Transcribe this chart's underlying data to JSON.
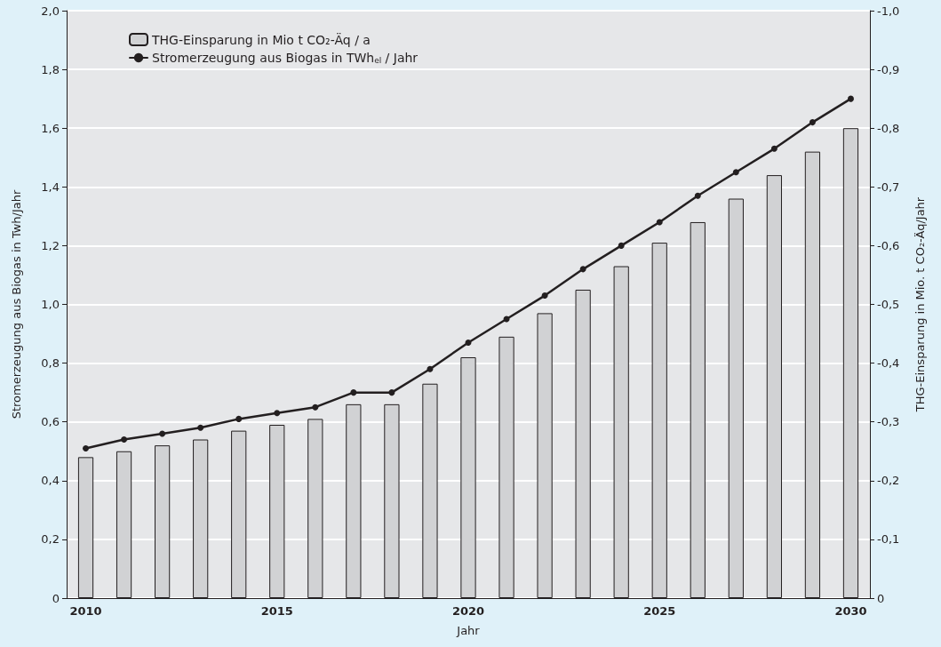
{
  "chart_data": {
    "type": "bar",
    "xlabel": "Jahr",
    "ylabel": "Stromerzeugung aus Biogas in Twh/Jahr",
    "y2label": "THG-Einsparung in Mio. t CO₂-Äq/Jahr",
    "categories": [
      "2010",
      null,
      null,
      null,
      null,
      "2015",
      null,
      null,
      null,
      null,
      "2020",
      null,
      null,
      null,
      null,
      "2025",
      null,
      null,
      null,
      null,
      "2030"
    ],
    "series": [
      {
        "name": "THG-Einsparung in Mio t CO₂-Äq / a",
        "axis": "y2",
        "color": "#d1d2d4",
        "values": [
          -0.24,
          -0.25,
          -0.26,
          -0.27,
          -0.285,
          -0.295,
          -0.305,
          -0.33,
          -0.33,
          -0.365,
          -0.41,
          -0.445,
          -0.485,
          -0.525,
          -0.565,
          -0.605,
          -0.64,
          -0.68,
          -0.72,
          -0.76,
          -0.8
        ]
      },
      {
        "name": "Stromerzeugung aus Biogas in TWh$_{el}$ / Jahr",
        "type": "line",
        "color": "#231f20",
        "marker": "circle",
        "line_style": "solid",
        "values": [
          0.51,
          0.54,
          0.56,
          0.58,
          0.61,
          0.63,
          0.65,
          0.7,
          0.7,
          0.78,
          0.87,
          0.95,
          1.03,
          1.12,
          1.2,
          1.28,
          1.37,
          1.45,
          1.53,
          1.62,
          1.7
        ]
      }
    ],
    "ylim": [
      0,
      2.0
    ],
    "yticks": [
      0,
      {
        "value": 0.2,
        "label": "0,2"
      },
      {
        "value": 0.4,
        "label": "0,4"
      },
      {
        "value": 0.6,
        "label": "0,6"
      },
      {
        "value": 0.8,
        "label": "0,8"
      },
      {
        "value": 1.0,
        "label": "1,0"
      },
      {
        "value": 1.2,
        "label": "1,2"
      },
      {
        "value": 1.4,
        "label": "1,4"
      },
      {
        "value": 1.6,
        "label": "1,6"
      },
      {
        "value": 1.8,
        "label": "1,8"
      },
      {
        "value": 2.0,
        "label": "2,0"
      }
    ],
    "y2lim": [
      0,
      -1.0
    ],
    "y2ticks": [
      0,
      {
        "value": -0.1,
        "label": "-0,1"
      },
      {
        "value": -0.2,
        "label": "-0,2"
      },
      {
        "value": -0.3,
        "label": "-0,3"
      },
      {
        "value": -0.4,
        "label": "-0,4"
      },
      {
        "value": -0.5,
        "label": "-0,5"
      },
      {
        "value": -0.6,
        "label": "-0,6"
      },
      {
        "value": -0.7,
        "label": "-0,7"
      },
      {
        "value": -0.8,
        "label": "-0,8"
      },
      {
        "value": -0.9,
        "label": "-0,9"
      },
      {
        "value": -1.0,
        "label": "-1,0"
      }
    ],
    "grid": "y",
    "legend": "top left"
  }
}
